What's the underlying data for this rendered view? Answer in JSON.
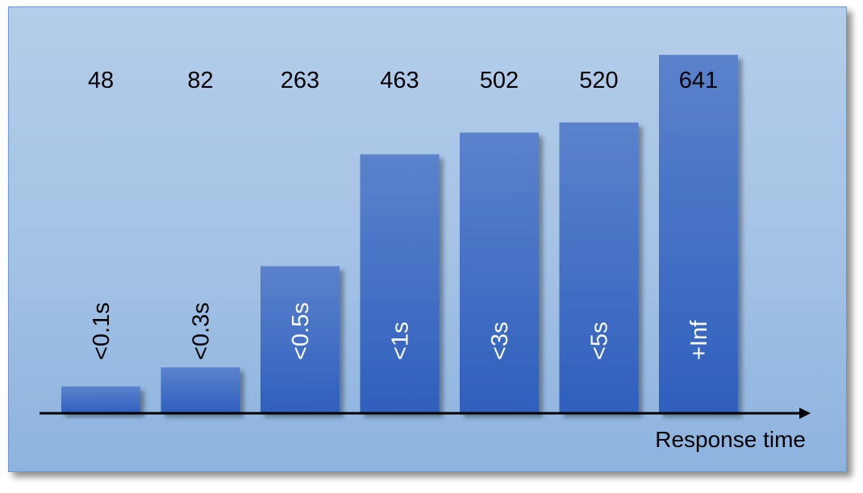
{
  "chart_data": {
    "type": "bar",
    "categories": [
      "<0.1s",
      "<0.3s",
      "<0.5s",
      "<1s",
      "<3s",
      "<5s",
      "+Inf"
    ],
    "values": [
      48,
      82,
      263,
      463,
      502,
      520,
      641
    ],
    "xlabel": "Response time",
    "ylabel": "",
    "ylim": [
      0,
      680
    ],
    "grid": false,
    "legend": "none",
    "bar_label_colors": [
      "#000000",
      "#000000",
      "#ffffff",
      "#ffffff",
      "#ffffff",
      "#ffffff",
      "#ffffff"
    ],
    "colors": {
      "bar_top": "#5b82cc",
      "bar_bottom": "#2f5fbd",
      "axis": "#000000"
    }
  }
}
